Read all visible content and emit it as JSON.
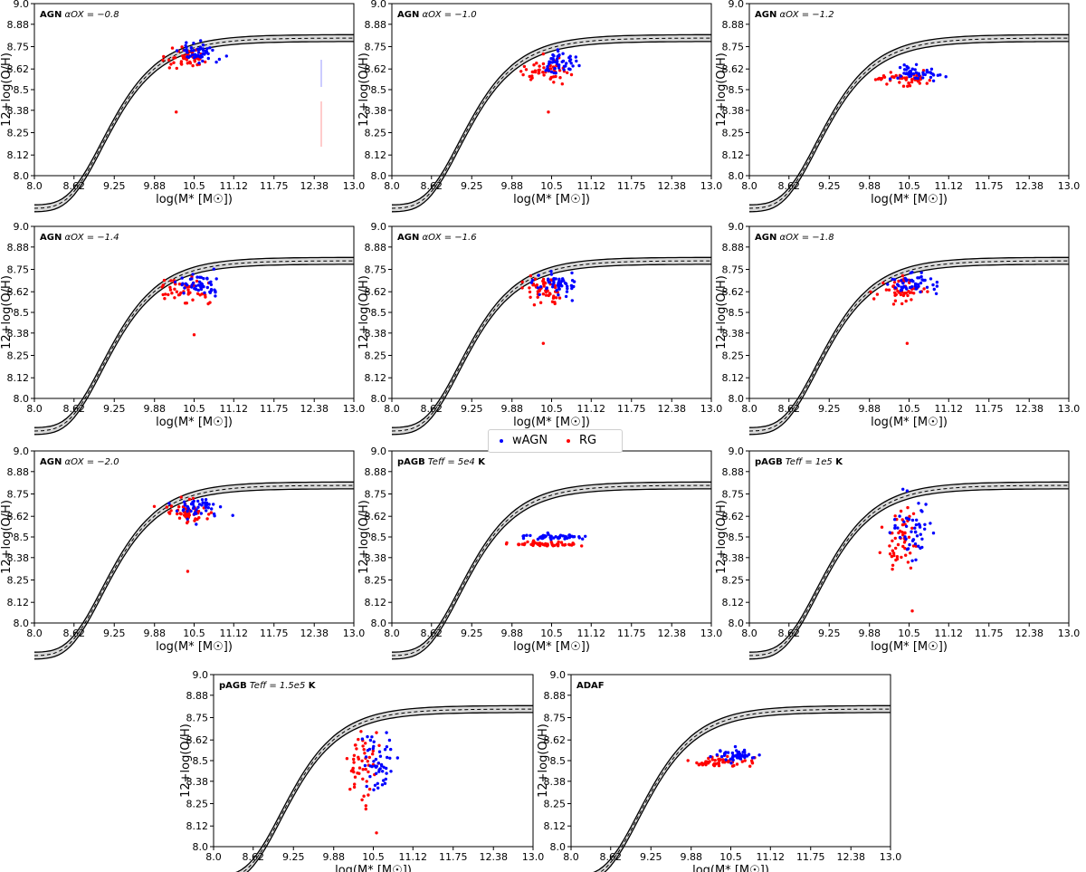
{
  "legend": {
    "wagn_label": "wAGN",
    "rg_label": "RG",
    "wagn_color": "#0000ff",
    "rg_color": "#ff0000"
  },
  "colors": {
    "wAGN": "#0000ff",
    "RG": "#ff0000",
    "band_fill": "#d9d9d9",
    "curve": "#000000"
  },
  "chart_data": [
    {
      "type": "scatter",
      "label_prefix": "AGN",
      "label_math": "αOX = −0.8",
      "xlabel": "log(M* [M☉])",
      "ylabel": "12+log(O/H)",
      "xlim": [
        8.0,
        13.0
      ],
      "ylim": [
        8.0,
        9.0
      ],
      "xticks": [
        "8.0",
        "8.62",
        "9.25",
        "9.88",
        "10.5",
        "11.12",
        "11.75",
        "12.38",
        "13.0"
      ],
      "yticks": [
        "8.0",
        "8.12",
        "8.25",
        "8.38",
        "8.5",
        "8.62",
        "8.75",
        "8.88",
        "9.0"
      ],
      "relation": {
        "asymptote": 8.8,
        "low_mass_value": 8.22
      },
      "center": {
        "x": 10.45,
        "y": 8.7
      },
      "spread": {
        "x": 0.28,
        "y": 0.04
      },
      "outlier": {
        "x": 10.22,
        "y": 8.37
      },
      "series": [
        {
          "name": "wAGN"
        },
        {
          "name": "RG"
        }
      ]
    },
    {
      "type": "scatter",
      "label_prefix": "AGN",
      "label_math": "αOX = −1.0",
      "xlabel": "log(M* [M☉])",
      "ylabel": "12+log(O/H)",
      "xlim": [
        8.0,
        13.0
      ],
      "ylim": [
        8.0,
        9.0
      ],
      "xticks": [
        "8.0",
        "8.62",
        "9.25",
        "9.88",
        "10.5",
        "11.12",
        "11.75",
        "12.38",
        "13.0"
      ],
      "yticks": [
        "8.0",
        "8.12",
        "8.25",
        "8.38",
        "8.5",
        "8.62",
        "8.75",
        "8.88",
        "9.0"
      ],
      "relation": {
        "asymptote": 8.8,
        "low_mass_value": 8.22
      },
      "center": {
        "x": 10.5,
        "y": 8.63
      },
      "spread": {
        "x": 0.3,
        "y": 0.05
      },
      "outlier": {
        "x": 10.45,
        "y": 8.37
      },
      "series": [
        {
          "name": "wAGN"
        },
        {
          "name": "RG"
        }
      ]
    },
    {
      "type": "scatter",
      "label_prefix": "AGN",
      "label_math": "αOX = −1.2",
      "xlabel": "log(M* [M☉])",
      "ylabel": "12+log(O/H)",
      "xlim": [
        8.0,
        13.0
      ],
      "ylim": [
        8.0,
        9.0
      ],
      "xticks": [
        "8.0",
        "8.62",
        "9.25",
        "9.88",
        "10.5",
        "11.12",
        "11.75",
        "12.38",
        "13.0"
      ],
      "yticks": [
        "8.0",
        "8.12",
        "8.25",
        "8.38",
        "8.5",
        "8.62",
        "8.75",
        "8.88",
        "9.0"
      ],
      "relation": {
        "asymptote": 8.8,
        "low_mass_value": 8.22
      },
      "center": {
        "x": 10.45,
        "y": 8.58
      },
      "spread": {
        "x": 0.35,
        "y": 0.03
      },
      "series": [
        {
          "name": "wAGN"
        },
        {
          "name": "RG"
        }
      ]
    },
    {
      "type": "scatter",
      "label_prefix": "AGN",
      "label_math": "αOX = −1.4",
      "xlabel": "log(M* [M☉])",
      "ylabel": "12+log(O/H)",
      "xlim": [
        8.0,
        13.0
      ],
      "ylim": [
        8.0,
        9.0
      ],
      "xticks": [
        "8.0",
        "8.62",
        "9.25",
        "9.88",
        "10.5",
        "11.12",
        "11.75",
        "12.38",
        "13.0"
      ],
      "yticks": [
        "8.0",
        "8.12",
        "8.25",
        "8.38",
        "8.5",
        "8.62",
        "8.75",
        "8.88",
        "9.0"
      ],
      "relation": {
        "asymptote": 8.8,
        "low_mass_value": 8.22
      },
      "center": {
        "x": 10.45,
        "y": 8.65
      },
      "spread": {
        "x": 0.3,
        "y": 0.05
      },
      "outlier": {
        "x": 10.5,
        "y": 8.37
      },
      "series": [
        {
          "name": "wAGN"
        },
        {
          "name": "RG"
        }
      ]
    },
    {
      "type": "scatter",
      "label_prefix": "AGN",
      "label_math": "αOX = −1.6",
      "xlabel": "log(M* [M☉])",
      "ylabel": "12+log(O/H)",
      "xlim": [
        8.0,
        13.0
      ],
      "ylim": [
        8.0,
        9.0
      ],
      "xticks": [
        "8.0",
        "8.62",
        "9.25",
        "9.88",
        "10.5",
        "11.12",
        "11.75",
        "12.38",
        "13.0"
      ],
      "yticks": [
        "8.0",
        "8.12",
        "8.25",
        "8.38",
        "8.5",
        "8.62",
        "8.75",
        "8.88",
        "9.0"
      ],
      "relation": {
        "asymptote": 8.8,
        "low_mass_value": 8.22
      },
      "center": {
        "x": 10.45,
        "y": 8.65
      },
      "spread": {
        "x": 0.3,
        "y": 0.05
      },
      "outlier": {
        "x": 10.37,
        "y": 8.32
      },
      "series": [
        {
          "name": "wAGN"
        },
        {
          "name": "RG"
        }
      ]
    },
    {
      "type": "scatter",
      "label_prefix": "AGN",
      "label_math": "αOX = −1.8",
      "xlabel": "log(M* [M☉])",
      "ylabel": "12+log(O/H)",
      "xlim": [
        8.0,
        13.0
      ],
      "ylim": [
        8.0,
        9.0
      ],
      "xticks": [
        "8.0",
        "8.62",
        "9.25",
        "9.88",
        "10.5",
        "11.12",
        "11.75",
        "12.38",
        "13.0"
      ],
      "yticks": [
        "8.0",
        "8.12",
        "8.25",
        "8.38",
        "8.5",
        "8.62",
        "8.75",
        "8.88",
        "9.0"
      ],
      "relation": {
        "asymptote": 8.8,
        "low_mass_value": 8.22
      },
      "center": {
        "x": 10.5,
        "y": 8.65
      },
      "spread": {
        "x": 0.3,
        "y": 0.05
      },
      "outlier": {
        "x": 10.47,
        "y": 8.32
      },
      "series": [
        {
          "name": "wAGN"
        },
        {
          "name": "RG"
        }
      ]
    },
    {
      "type": "scatter",
      "label_prefix": "AGN",
      "label_math": "αOX = −2.0",
      "xlabel": "log(M* [M☉])",
      "ylabel": "12+log(O/H)",
      "xlim": [
        8.0,
        13.0
      ],
      "ylim": [
        8.0,
        9.0
      ],
      "xticks": [
        "8.0",
        "8.62",
        "9.25",
        "9.88",
        "10.5",
        "11.12",
        "11.75",
        "12.38",
        "13.0"
      ],
      "yticks": [
        "8.0",
        "8.12",
        "8.25",
        "8.38",
        "8.5",
        "8.62",
        "8.75",
        "8.88",
        "9.0"
      ],
      "relation": {
        "asymptote": 8.8,
        "low_mass_value": 8.22
      },
      "center": {
        "x": 10.45,
        "y": 8.65
      },
      "spread": {
        "x": 0.3,
        "y": 0.05
      },
      "outlier": {
        "x": 10.4,
        "y": 8.3
      },
      "series": [
        {
          "name": "wAGN"
        },
        {
          "name": "RG"
        }
      ]
    },
    {
      "type": "scatter",
      "label_prefix": "pAGB",
      "label_math": "Teff = 5e4 K",
      "xlabel": "log(M* [M☉])",
      "ylabel": "12+log(O/H)",
      "xlim": [
        8.0,
        13.0
      ],
      "ylim": [
        8.0,
        9.0
      ],
      "xticks": [
        "8.0",
        "8.62",
        "9.25",
        "9.88",
        "10.5",
        "11.12",
        "11.75",
        "12.38",
        "13.0"
      ],
      "yticks": [
        "8.0",
        "8.12",
        "8.25",
        "8.38",
        "8.5",
        "8.62",
        "8.75",
        "8.88",
        "9.0"
      ],
      "relation": {
        "asymptote": 8.8,
        "low_mass_value": 8.22
      },
      "center": {
        "x": 10.45,
        "y": 8.48
      },
      "spread": {
        "x": 0.4,
        "y": 0.012
      },
      "series": [
        {
          "name": "wAGN"
        },
        {
          "name": "RG"
        }
      ]
    },
    {
      "type": "scatter",
      "label_prefix": "pAGB",
      "label_math": "Teff = 1e5 K",
      "xlabel": "log(M* [M☉])",
      "ylabel": "12+log(O/H)",
      "xlim": [
        8.0,
        13.0
      ],
      "ylim": [
        8.0,
        9.0
      ],
      "xticks": [
        "8.0",
        "8.62",
        "9.25",
        "9.88",
        "10.5",
        "11.12",
        "11.75",
        "12.38",
        "13.0"
      ],
      "yticks": [
        "8.0",
        "8.12",
        "8.25",
        "8.38",
        "8.5",
        "8.62",
        "8.75",
        "8.88",
        "9.0"
      ],
      "relation": {
        "asymptote": 8.8,
        "low_mass_value": 8.22
      },
      "center": {
        "x": 10.45,
        "y": 8.52
      },
      "spread": {
        "x": 0.25,
        "y": 0.14
      },
      "outlier": {
        "x": 10.55,
        "y": 8.07
      },
      "series": [
        {
          "name": "wAGN"
        },
        {
          "name": "RG"
        }
      ]
    },
    {
      "type": "scatter",
      "label_prefix": "pAGB",
      "label_math": "Teff = 1.5e5 K",
      "xlabel": "log(M* [M☉])",
      "ylabel": "12+log(O/H)",
      "xlim": [
        8.0,
        13.0
      ],
      "ylim": [
        8.0,
        9.0
      ],
      "xticks": [
        "8.0",
        "8.62",
        "9.25",
        "9.88",
        "10.5",
        "11.12",
        "11.75",
        "12.38",
        "13.0"
      ],
      "yticks": [
        "8.0",
        "8.12",
        "8.25",
        "8.38",
        "8.5",
        "8.62",
        "8.75",
        "8.88",
        "9.0"
      ],
      "relation": {
        "asymptote": 8.8,
        "low_mass_value": 8.22
      },
      "center": {
        "x": 10.45,
        "y": 8.48
      },
      "spread": {
        "x": 0.25,
        "y": 0.16
      },
      "outlier": {
        "x": 10.55,
        "y": 8.08
      },
      "series": [
        {
          "name": "wAGN"
        },
        {
          "name": "RG"
        }
      ]
    },
    {
      "type": "scatter",
      "label_prefix": "ADAF",
      "label_math": "",
      "xlabel": "log(M* [M☉])",
      "ylabel": "12+log(O/H)",
      "xlim": [
        8.0,
        13.0
      ],
      "ylim": [
        8.0,
        9.0
      ],
      "xticks": [
        "8.0",
        "8.62",
        "9.25",
        "9.88",
        "10.5",
        "11.12",
        "11.75",
        "12.38",
        "13.0"
      ],
      "yticks": [
        "8.0",
        "8.12",
        "8.25",
        "8.38",
        "8.5",
        "8.62",
        "8.75",
        "8.88",
        "9.0"
      ],
      "relation": {
        "asymptote": 8.8,
        "low_mass_value": 8.22
      },
      "center": {
        "x": 10.45,
        "y": 8.51
      },
      "spread": {
        "x": 0.32,
        "y": 0.025
      },
      "series": [
        {
          "name": "wAGN"
        },
        {
          "name": "RG"
        }
      ]
    }
  ]
}
